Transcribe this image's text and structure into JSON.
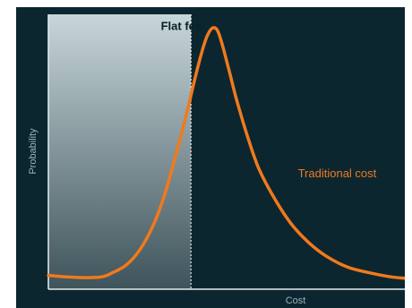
{
  "chart_data": {
    "type": "line",
    "title": "",
    "xlabel": "Cost",
    "ylabel": "Probability",
    "grid": false,
    "legend": "none",
    "xlim": [
      0,
      100
    ],
    "ylim": [
      0,
      100
    ],
    "colors": {
      "background": "#0c2630",
      "series_line": "#f07a1c",
      "axis": "#e6edf0",
      "shaded_top": "#c7d6da",
      "shaded_bottom": "#3e535a",
      "flat_label": "#0c1f26",
      "axis_title": "#9fb0b5"
    },
    "annotations": [
      {
        "text": "Flat fee",
        "x": 43,
        "y": 96,
        "anchor": "end"
      },
      {
        "text": "Traditional cost",
        "x": 70,
        "y": 42,
        "anchor": "start"
      }
    ],
    "flat_fee_region": {
      "x_from": 0,
      "x_to": 40
    },
    "series": [
      {
        "name": "Traditional cost",
        "x": [
          0,
          5,
          10,
          15,
          18,
          22,
          26,
          30,
          33,
          36,
          39,
          41,
          43,
          44.5,
          46,
          47.5,
          49,
          51,
          53,
          56,
          59,
          63,
          68,
          73,
          78,
          84,
          90,
          96,
          100
        ],
        "y": [
          5,
          4.5,
          4.2,
          4.5,
          6,
          9,
          15,
          25,
          36,
          50,
          65,
          76,
          86,
          92,
          95,
          94,
          88,
          78,
          68,
          55,
          44,
          34,
          24,
          17,
          12,
          8,
          6,
          4.5,
          4
        ]
      }
    ]
  }
}
